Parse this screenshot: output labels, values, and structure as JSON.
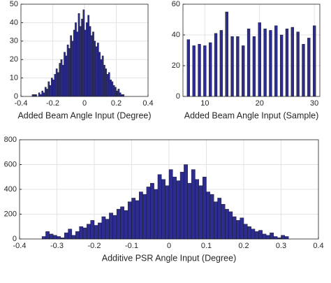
{
  "chart_data": [
    {
      "type": "histogram",
      "xlabel": "Added Beam Angle Input (Degree)",
      "color": "#2d2d8f",
      "grid": true,
      "xlim": [
        -0.4,
        0.4
      ],
      "xticks": [
        -0.4,
        -0.2,
        0,
        0.2,
        0.4
      ],
      "ylim": [
        0,
        50
      ],
      "yticks": [
        0,
        10,
        20,
        30,
        40,
        50
      ],
      "bins": [
        -0.33,
        -0.32,
        -0.31,
        -0.3,
        -0.29,
        -0.28,
        -0.27,
        -0.26,
        -0.25,
        -0.24,
        -0.23,
        -0.22,
        -0.21,
        -0.2,
        -0.19,
        -0.18,
        -0.17,
        -0.16,
        -0.15,
        -0.14,
        -0.13,
        -0.12,
        -0.11,
        -0.1,
        -0.09,
        -0.08,
        -0.07,
        -0.06,
        -0.05,
        -0.04,
        -0.03,
        -0.02,
        -0.01,
        0,
        0.01,
        0.02,
        0.03,
        0.04,
        0.05,
        0.06,
        0.07,
        0.08,
        0.09,
        0.1,
        0.11,
        0.12,
        0.13,
        0.14,
        0.15,
        0.16,
        0.17,
        0.18,
        0.19,
        0.2,
        0.21,
        0.22,
        0.23,
        0.24,
        0.25
      ],
      "values": [
        1,
        1,
        1,
        0,
        2,
        1,
        3,
        2,
        5,
        4,
        8,
        6,
        10,
        9,
        12,
        15,
        13,
        18,
        20,
        17,
        24,
        22,
        28,
        26,
        33,
        30,
        36,
        40,
        35,
        45,
        38,
        42,
        47,
        36,
        40,
        44,
        38,
        33,
        35,
        30,
        27,
        29,
        24,
        20,
        22,
        17,
        15,
        12,
        13,
        9,
        8,
        6,
        5,
        3,
        4,
        2,
        1,
        1
      ]
    },
    {
      "type": "bar",
      "xlabel": "Added Beam Angle Input (Sample)",
      "color": "#2d2d8f",
      "grid": true,
      "xlim": [
        6,
        31
      ],
      "xticks": [
        10,
        20,
        30
      ],
      "ylim": [
        0,
        60
      ],
      "yticks": [
        0,
        20,
        40,
        60
      ],
      "x": [
        7,
        8,
        9,
        10,
        11,
        12,
        13,
        14,
        15,
        16,
        17,
        18,
        19,
        20,
        21,
        22,
        23,
        24,
        25,
        26,
        27,
        28,
        29,
        30
      ],
      "values": [
        37,
        33,
        34,
        33,
        35,
        41,
        43,
        55,
        39,
        39,
        33,
        44,
        39,
        48,
        44,
        43,
        46,
        40,
        44,
        45,
        42,
        34,
        38,
        46
      ]
    },
    {
      "type": "histogram",
      "xlabel": "Additive PSR Angle Input (Degree)",
      "color": "#2d2d8f",
      "grid": true,
      "xlim": [
        -0.4,
        0.4
      ],
      "xticks": [
        -0.4,
        -0.3,
        -0.2,
        -0.1,
        0,
        0.1,
        0.2,
        0.3,
        0.4
      ],
      "ylim": [
        0,
        800
      ],
      "yticks": [
        0,
        200,
        400,
        600,
        800
      ],
      "bins": [
        -0.34,
        -0.33,
        -0.32,
        -0.31,
        -0.3,
        -0.29,
        -0.28,
        -0.27,
        -0.26,
        -0.25,
        -0.24,
        -0.23,
        -0.22,
        -0.21,
        -0.2,
        -0.19,
        -0.18,
        -0.17,
        -0.16,
        -0.15,
        -0.14,
        -0.13,
        -0.12,
        -0.11,
        -0.1,
        -0.09,
        -0.08,
        -0.07,
        -0.06,
        -0.05,
        -0.04,
        -0.03,
        -0.02,
        -0.01,
        0,
        0.01,
        0.02,
        0.03,
        0.04,
        0.05,
        0.06,
        0.07,
        0.08,
        0.09,
        0.1,
        0.11,
        0.12,
        0.13,
        0.14,
        0.15,
        0.16,
        0.17,
        0.18,
        0.19,
        0.2,
        0.21,
        0.22,
        0.23,
        0.24,
        0.25,
        0.26,
        0.27,
        0.28,
        0.29,
        0.3,
        0.31,
        0.32
      ],
      "values": [
        20,
        60,
        40,
        30,
        20,
        10,
        50,
        80,
        30,
        60,
        100,
        90,
        120,
        150,
        110,
        130,
        180,
        160,
        210,
        190,
        240,
        260,
        230,
        300,
        330,
        310,
        380,
        360,
        420,
        450,
        400,
        520,
        480,
        430,
        560,
        500,
        470,
        540,
        600,
        450,
        560,
        480,
        430,
        500,
        380,
        360,
        300,
        330,
        280,
        240,
        220,
        180,
        150,
        170,
        120,
        100,
        80,
        60,
        70,
        40,
        30,
        50,
        20,
        10,
        30,
        20
      ]
    }
  ]
}
